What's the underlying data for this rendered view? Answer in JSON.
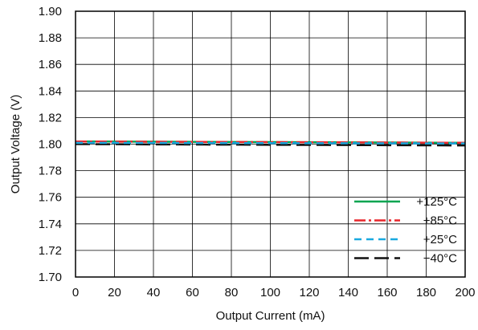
{
  "chart_data": {
    "type": "line",
    "title": "",
    "xlabel": "Output Current (mA)",
    "ylabel": "Output Voltage (V)",
    "xlim": [
      0,
      200
    ],
    "ylim": [
      1.7,
      1.9
    ],
    "x_ticks": [
      "0",
      "20",
      "40",
      "60",
      "80",
      "100",
      "120",
      "140",
      "160",
      "180",
      "200"
    ],
    "y_ticks": [
      "1.70",
      "1.72",
      "1.74",
      "1.76",
      "1.78",
      "1.80",
      "1.82",
      "1.84",
      "1.86",
      "1.88",
      "1.90"
    ],
    "grid": true,
    "legend_position": "bottom-right",
    "x": [
      0,
      200
    ],
    "series": [
      {
        "name": "+125°C",
        "values": [
          1.802,
          1.801
        ],
        "color": "#00a550",
        "style": "solid"
      },
      {
        "name": "+85°C",
        "values": [
          1.802,
          1.801
        ],
        "color": "#e8262b",
        "style": "dash-dot"
      },
      {
        "name": "+25°C",
        "values": [
          1.801,
          1.8005
        ],
        "color": "#1aa9e0",
        "style": "dashed"
      },
      {
        "name": "−40°C",
        "values": [
          1.8,
          1.799
        ],
        "color": "#111111",
        "style": "long-dash"
      }
    ]
  }
}
